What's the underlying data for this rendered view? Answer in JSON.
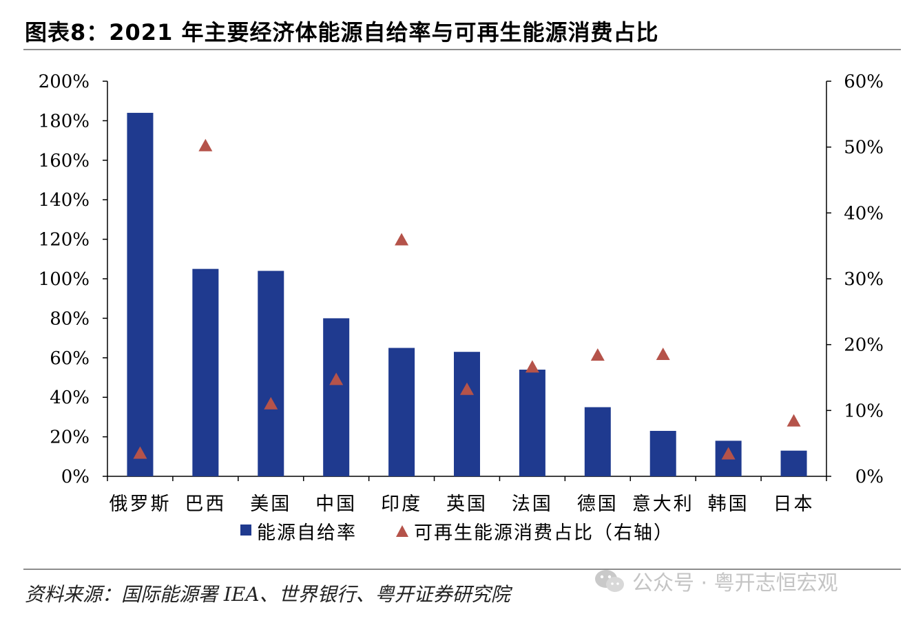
{
  "title": "图表8：2021 年主要经济体能源自给率与可再生能源消费占比",
  "source": "资料来源：国际能源署 IEA、世界银行、粤开证券研究院",
  "watermark": "公众号 · 粤开志恒宏观",
  "watermark_icon": "wechat-icon",
  "colors": {
    "bar": "#1f3a8f",
    "marker": "#b5534a",
    "axis": "#000000",
    "rule": "#8c8c8c"
  },
  "chart_data": {
    "type": "bar",
    "categories": [
      "俄罗斯",
      "巴西",
      "美国",
      "中国",
      "印度",
      "英国",
      "法国",
      "德国",
      "意大利",
      "韩国",
      "日本"
    ],
    "series": [
      {
        "name": "能源自给率",
        "type": "bar",
        "axis": "left",
        "values": [
          184,
          105,
          104,
          80,
          65,
          63,
          54,
          35,
          23,
          18,
          13
        ]
      },
      {
        "name": "可再生能源消费占比（右轴）",
        "type": "scatter",
        "marker": "triangle",
        "axis": "right",
        "values": [
          3.5,
          50.2,
          11.0,
          14.7,
          35.9,
          13.2,
          16.6,
          18.4,
          18.5,
          3.4,
          8.4
        ]
      }
    ],
    "y_left": {
      "ylim": [
        0,
        200
      ],
      "ticks": [
        "0%",
        "20%",
        "40%",
        "60%",
        "80%",
        "100%",
        "120%",
        "140%",
        "160%",
        "180%",
        "200%"
      ]
    },
    "y_right": {
      "ylim": [
        0,
        60
      ],
      "ticks": [
        "0%",
        "10%",
        "20%",
        "30%",
        "40%",
        "50%",
        "60%"
      ]
    },
    "legend": {
      "placement": "bottom",
      "labels": [
        "能源自给率",
        "可再生能源消费占比（右轴）"
      ]
    },
    "grid": false
  }
}
